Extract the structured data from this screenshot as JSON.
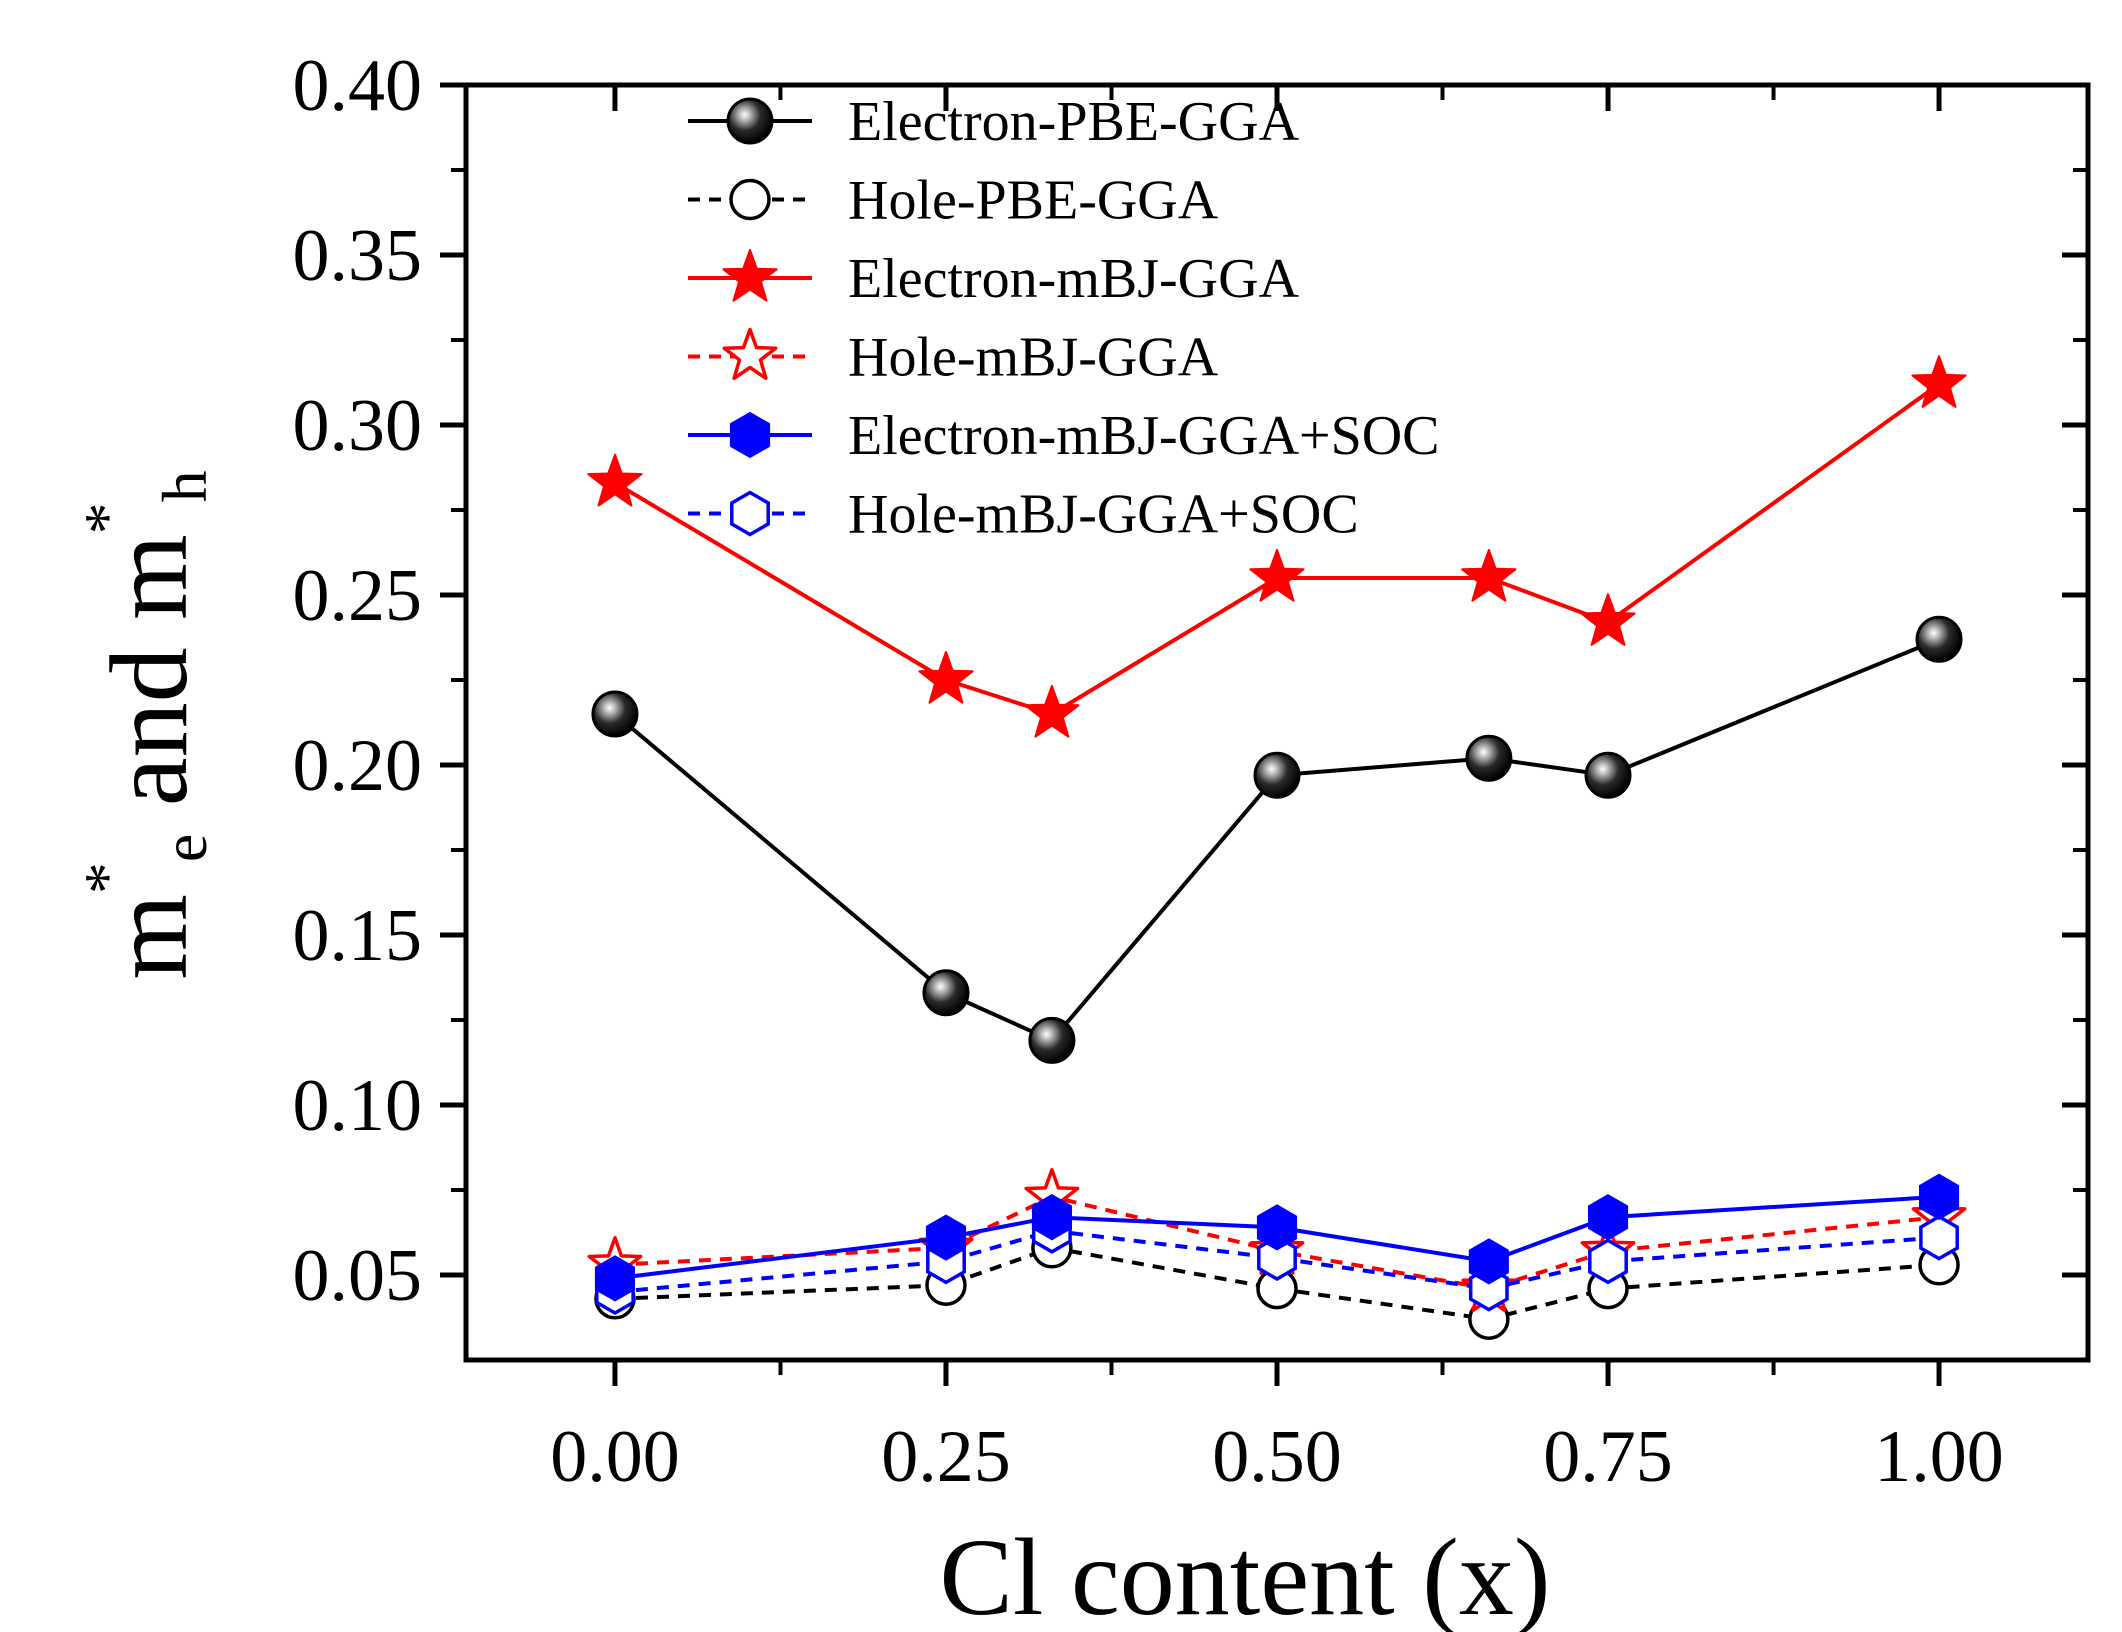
{
  "chart_data": {
    "type": "line",
    "xlabel": "Cl content (x)",
    "ylabel": {
      "parts": [
        {
          "text": "m",
          "role": "main"
        },
        {
          "text": "*",
          "role": "sup"
        },
        {
          "text": "e",
          "role": "sub"
        },
        {
          "text": " and m",
          "role": "main"
        },
        {
          "text": "*",
          "role": "sup"
        },
        {
          "text": "h",
          "role": "sub"
        }
      ]
    },
    "xlim": [
      -0.1125,
      1.1125
    ],
    "ylim": [
      0.025,
      0.4
    ],
    "x_ticks": [
      0.0,
      0.25,
      0.5,
      0.75,
      1.0
    ],
    "x_tick_labels": [
      "0.00",
      "0.25",
      "0.50",
      "0.75",
      "1.00"
    ],
    "x_minor_ticks": [
      0.125,
      0.375,
      0.625,
      0.875
    ],
    "y_ticks": [
      0.05,
      0.1,
      0.15,
      0.2,
      0.25,
      0.3,
      0.35,
      0.4
    ],
    "y_tick_labels": [
      "0.05",
      "0.10",
      "0.15",
      "0.20",
      "0.25",
      "0.30",
      "0.35",
      "0.40"
    ],
    "y_minor_ticks": [
      0.075,
      0.125,
      0.175,
      0.225,
      0.275,
      0.325,
      0.375
    ],
    "legend_position": "top-left",
    "x": [
      0.0,
      0.25,
      0.33,
      0.5,
      0.66,
      0.75,
      1.0
    ],
    "series": [
      {
        "name": "Electron-PBE-GGA",
        "color": "#000000",
        "line": "solid",
        "marker": "sphere",
        "values": [
          0.215,
          0.133,
          0.119,
          0.197,
          0.202,
          0.197,
          0.237
        ]
      },
      {
        "name": "Hole-PBE-GGA",
        "color": "#000000",
        "line": "dashed",
        "marker": "circle-open",
        "values": [
          0.043,
          0.047,
          0.058,
          0.046,
          0.037,
          0.046,
          0.053
        ]
      },
      {
        "name": "Electron-mBJ-GGA",
        "color": "#ff0000",
        "line": "solid",
        "marker": "star-filled",
        "values": [
          0.283,
          0.225,
          0.215,
          0.255,
          0.255,
          0.242,
          0.312
        ]
      },
      {
        "name": "Hole-mBJ-GGA",
        "color": "#ff0000",
        "line": "dashed",
        "marker": "star-open",
        "values": [
          0.053,
          0.058,
          0.073,
          0.057,
          0.046,
          0.057,
          0.067
        ]
      },
      {
        "name": "Electron-mBJ-GGA+SOC",
        "color": "#0000ff",
        "line": "solid",
        "marker": "hexagon-filled",
        "values": [
          0.049,
          0.061,
          0.067,
          0.064,
          0.054,
          0.067,
          0.073
        ]
      },
      {
        "name": "Hole-mBJ-GGA+SOC",
        "color": "#0000ff",
        "line": "dashed",
        "marker": "hexagon-open",
        "values": [
          0.045,
          0.054,
          0.063,
          0.055,
          0.046,
          0.054,
          0.061
        ]
      }
    ]
  }
}
